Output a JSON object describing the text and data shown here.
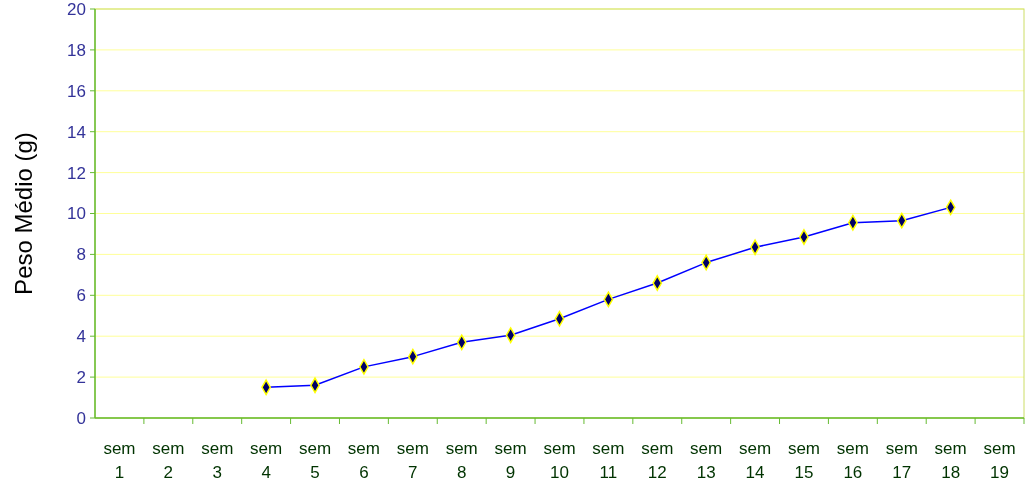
{
  "chart_data": {
    "type": "line",
    "ylabel": "Peso Médio (g)",
    "categories": [
      "sem 1",
      "sem 2",
      "sem 3",
      "sem 4",
      "sem 5",
      "sem 6",
      "sem 7",
      "sem 8",
      "sem 9",
      "sem 10",
      "sem 11",
      "sem 12",
      "sem 13",
      "sem 14",
      "sem 15",
      "sem 16",
      "sem 17",
      "sem 18",
      "sem 19"
    ],
    "series": [
      {
        "color": "#0000ff",
        "values": [
          null,
          null,
          null,
          1.5,
          1.6,
          2.5,
          3.0,
          3.7,
          4.05,
          4.85,
          5.8,
          6.6,
          7.6,
          8.35,
          8.85,
          9.55,
          9.65,
          10.3,
          null
        ]
      }
    ],
    "ylim": [
      0,
      20
    ],
    "yticks": [
      0,
      2,
      4,
      6,
      8,
      10,
      12,
      14,
      16,
      18,
      20
    ],
    "grid": "y",
    "marker": "diamond",
    "line_style": "solid"
  }
}
